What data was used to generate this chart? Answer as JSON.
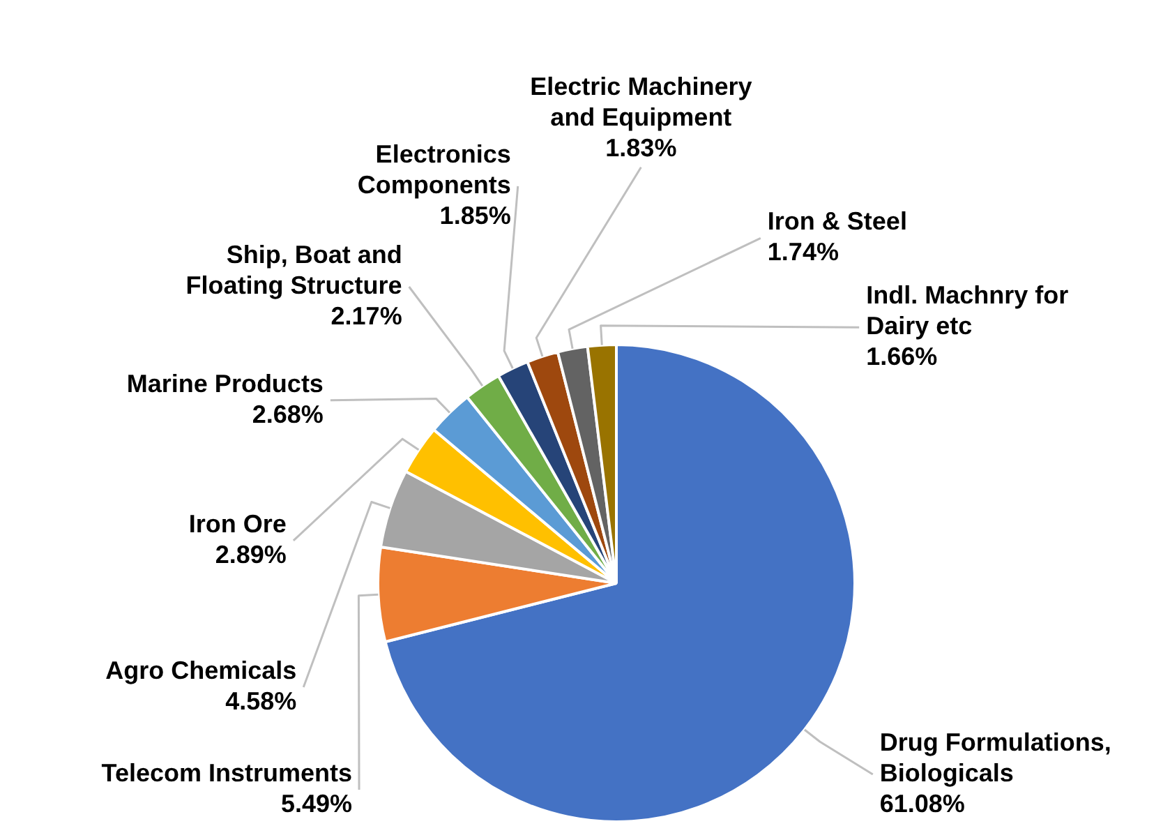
{
  "chart_data": {
    "type": "pie",
    "categories": [
      "Drug Formulations, Biologicals",
      "Telecom Instruments",
      "Agro Chemicals",
      "Iron Ore",
      "Marine Products",
      "Ship, Boat and Floating Structure",
      "Electronics Components",
      "Electric Machinery and Equipment",
      "Iron & Steel",
      "Indl. Machnry for Dairy etc"
    ],
    "values": [
      61.08,
      5.49,
      4.58,
      2.89,
      2.68,
      2.17,
      1.85,
      1.83,
      1.74,
      1.66
    ],
    "value_labels": [
      "61.08%",
      "5.49%",
      "4.58%",
      "2.89%",
      "2.68%",
      "2.17%",
      "1.85%",
      "1.83%",
      "1.74%",
      "1.66%"
    ],
    "colors": [
      "#4472c4",
      "#ed7d31",
      "#a5a5a5",
      "#ffc000",
      "#5b9bd5",
      "#70ad47",
      "#264478",
      "#9e480e",
      "#636363",
      "#997300"
    ]
  }
}
